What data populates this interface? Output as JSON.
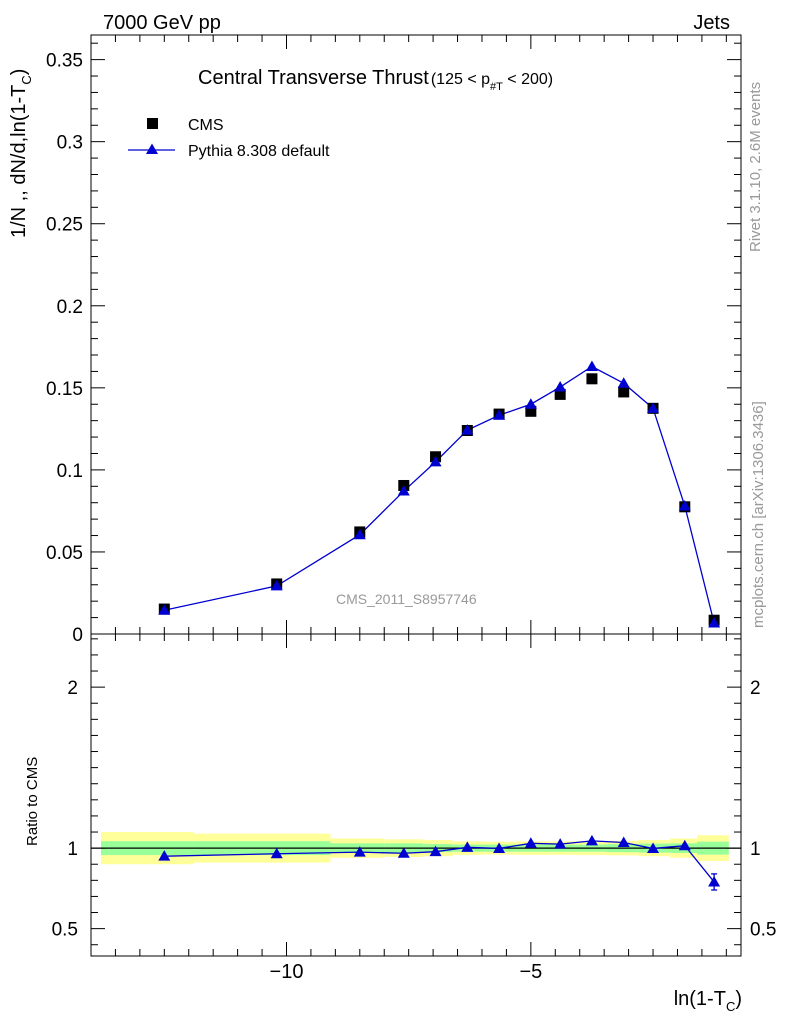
{
  "header": {
    "left": "7000 GeV pp",
    "right": "Jets"
  },
  "side_text": {
    "rivet": "Rivet 3.1.10,  2.6M events",
    "mcplots": "mcplots.cern.ch [arXiv:1306.3436]"
  },
  "chart_data": [
    {
      "type": "scatter",
      "title": "Central Transverse Thrust",
      "title_cut": {
        "pre": "(125 < p",
        "sub": "#T",
        "post": "  < 200)"
      },
      "watermark": "CMS_2011_S8957746",
      "ylabel": {
        "main": "1/N ,, dN/d,ln(1-T",
        "sub": "C",
        "close": ")"
      },
      "xlabel": {
        "main": "ln(1-T",
        "sub": "C",
        "close": ")"
      },
      "xlim": [
        -14,
        -0.7
      ],
      "ylim": [
        0,
        0.365
      ],
      "yticks": [
        {
          "v": 0,
          "label": "0"
        },
        {
          "v": 0.05,
          "label": "0.05"
        },
        {
          "v": 0.1,
          "label": "0.1"
        },
        {
          "v": 0.15,
          "label": "0.15"
        },
        {
          "v": 0.2,
          "label": "0.2"
        },
        {
          "v": 0.25,
          "label": "0.25"
        },
        {
          "v": 0.3,
          "label": "0.3"
        },
        {
          "v": 0.35,
          "label": "0.35"
        }
      ],
      "legend_position": "top-left",
      "series": [
        {
          "name": "CMS",
          "color": "#000000",
          "marker": "square",
          "x": [
            -12.5,
            -10.2,
            -8.5,
            -7.6,
            -6.95,
            -6.3,
            -5.65,
            -5.0,
            -4.4,
            -3.75,
            -3.1,
            -2.5,
            -1.85,
            -1.25
          ],
          "y": [
            0.0152,
            0.0305,
            0.0622,
            0.0905,
            0.108,
            0.124,
            0.134,
            0.1357,
            0.146,
            0.1555,
            0.1475,
            0.1375,
            0.0775,
            0.0084
          ]
        },
        {
          "name": "Pythia 8.308 default",
          "color": "#0000d0",
          "marker": "triangle",
          "x": [
            -12.5,
            -10.2,
            -8.5,
            -7.6,
            -6.95,
            -6.3,
            -5.65,
            -5.0,
            -4.4,
            -3.75,
            -3.1,
            -2.5,
            -1.85,
            -1.25
          ],
          "y": [
            0.0145,
            0.0293,
            0.0605,
            0.0871,
            0.1049,
            0.1242,
            0.1333,
            0.14,
            0.1505,
            0.163,
            0.1528,
            0.1375,
            0.078,
            0.0067
          ]
        }
      ]
    },
    {
      "type": "line",
      "ylabel": "Ratio to CMS",
      "xlim": [
        -14,
        -0.7
      ],
      "ylim": [
        0.33,
        2.33
      ],
      "xticks": [
        {
          "v": -10,
          "label": "−10"
        },
        {
          "v": -5,
          "label": "−5"
        }
      ],
      "yticks": [
        {
          "v": 0.5,
          "label": "0.5"
        },
        {
          "v": 1,
          "label": "1"
        },
        {
          "v": 2,
          "label": "2"
        }
      ],
      "band_colors": {
        "outer": "#ffff99",
        "inner": "#99ff99"
      },
      "bands": [
        {
          "x0": -14,
          "x1": -11.9,
          "inner": [
            0.957,
            1.043
          ],
          "outer": [
            0.9,
            1.1
          ]
        },
        {
          "x0": -11.9,
          "x1": -9.1,
          "inner": [
            0.957,
            1.043
          ],
          "outer": [
            0.91,
            1.09
          ]
        },
        {
          "x0": -9.1,
          "x1": -8.0,
          "inner": [
            0.97,
            1.03
          ],
          "outer": [
            0.94,
            1.06
          ]
        },
        {
          "x0": -8.0,
          "x1": -7.2,
          "inner": [
            0.97,
            1.03
          ],
          "outer": [
            0.945,
            1.055
          ]
        },
        {
          "x0": -7.2,
          "x1": -6.6,
          "inner": [
            0.975,
            1.025
          ],
          "outer": [
            0.95,
            1.05
          ]
        },
        {
          "x0": -6.6,
          "x1": -6.0,
          "inner": [
            0.978,
            1.022
          ],
          "outer": [
            0.958,
            1.042
          ]
        },
        {
          "x0": -6.0,
          "x1": -5.3,
          "inner": [
            0.978,
            1.022
          ],
          "outer": [
            0.96,
            1.04
          ]
        },
        {
          "x0": -5.3,
          "x1": -4.7,
          "inner": [
            0.978,
            1.022
          ],
          "outer": [
            0.958,
            1.042
          ]
        },
        {
          "x0": -4.7,
          "x1": -4.1,
          "inner": [
            0.978,
            1.022
          ],
          "outer": [
            0.958,
            1.042
          ]
        },
        {
          "x0": -4.1,
          "x1": -3.45,
          "inner": [
            0.978,
            1.022
          ],
          "outer": [
            0.957,
            1.043
          ]
        },
        {
          "x0": -3.45,
          "x1": -2.8,
          "inner": [
            0.975,
            1.025
          ],
          "outer": [
            0.955,
            1.045
          ]
        },
        {
          "x0": -2.8,
          "x1": -2.15,
          "inner": [
            0.972,
            1.028
          ],
          "outer": [
            0.95,
            1.05
          ]
        },
        {
          "x0": -2.15,
          "x1": -1.6,
          "inner": [
            0.97,
            1.03
          ],
          "outer": [
            0.94,
            1.06
          ]
        },
        {
          "x0": -1.6,
          "x1": -0.95,
          "inner": [
            0.96,
            1.04
          ],
          "outer": [
            0.92,
            1.08
          ]
        }
      ],
      "series": [
        {
          "name": "Pythia 8.308 default",
          "color": "#0000d0",
          "x": [
            -12.5,
            -10.2,
            -8.5,
            -7.6,
            -6.95,
            -6.3,
            -5.65,
            -5.0,
            -4.4,
            -3.75,
            -3.1,
            -2.5,
            -1.85,
            -1.25
          ],
          "y": [
            0.95,
            0.965,
            0.975,
            0.968,
            0.978,
            1.005,
            0.998,
            1.03,
            1.025,
            1.045,
            1.035,
            0.998,
            1.015,
            0.79
          ],
          "yerr_last": [
            0.74,
            0.84
          ]
        }
      ]
    }
  ]
}
